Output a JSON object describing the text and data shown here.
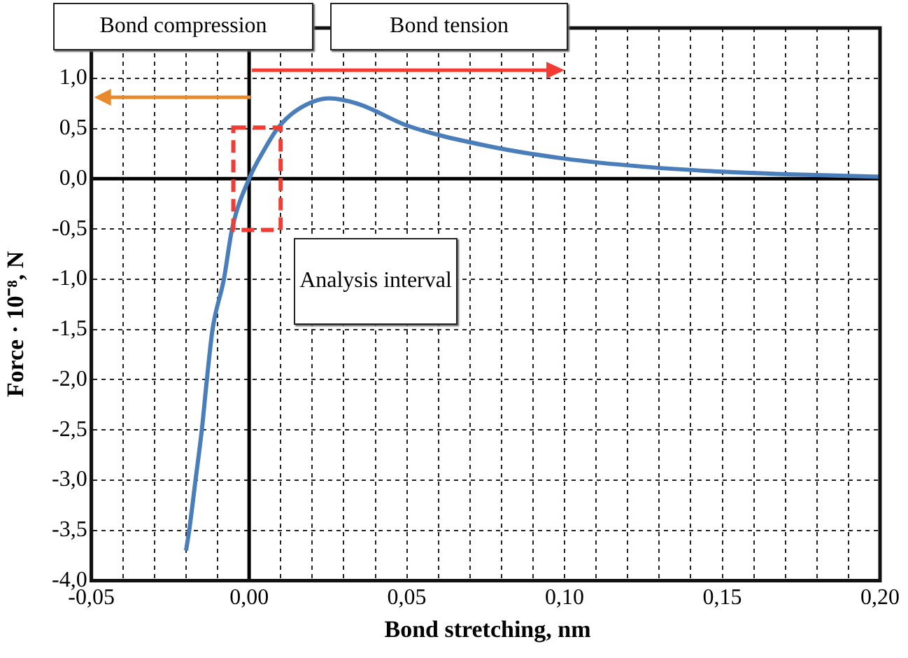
{
  "chart_data": {
    "type": "line",
    "xlabel": "Bond stretching, nm",
    "ylabel": "Force · 10⁻⁸, N",
    "annotations": [
      "Bond compression",
      "Bond tension",
      "Analysis interval"
    ],
    "series": [
      {
        "color": "#4a7ebb",
        "x": [
          -0.02,
          -0.019,
          -0.017,
          -0.015,
          -0.0134,
          -0.0116,
          -0.008,
          -0.0054,
          0,
          0.005,
          0.009,
          0.015,
          0.0255,
          0.035,
          0.05,
          0.075,
          0.1,
          0.125,
          0.15,
          0.175,
          0.2
        ],
        "values": [
          -3.7,
          -3.5,
          -3.0,
          -2.5,
          -2.0,
          -1.5,
          -1.0,
          -0.5,
          0,
          0.3,
          0.5,
          0.68,
          0.8,
          0.74,
          0.53,
          0.33,
          0.2,
          0.12,
          0.07,
          0.04,
          0.02
        ]
      }
    ],
    "xlim": [
      -0.05,
      0.2
    ],
    "xticks": [
      {
        "value": -0.05,
        "label": "-0,05"
      },
      {
        "value": -0.04,
        "label": null
      },
      {
        "value": -0.03,
        "label": null
      },
      {
        "value": -0.02,
        "label": null
      },
      {
        "value": -0.01,
        "label": null
      },
      {
        "value": 0,
        "label": "0,00"
      },
      {
        "value": 0.01,
        "label": null
      },
      {
        "value": 0.02,
        "label": null
      },
      {
        "value": 0.03,
        "label": null
      },
      {
        "value": 0.04,
        "label": null
      },
      {
        "value": 0.05,
        "label": "0,05"
      },
      {
        "value": 0.06,
        "label": null
      },
      {
        "value": 0.07,
        "label": null
      },
      {
        "value": 0.08,
        "label": null
      },
      {
        "value": 0.09,
        "label": null
      },
      {
        "value": 0.1,
        "label": "0,10"
      },
      {
        "value": 0.11,
        "label": null
      },
      {
        "value": 0.12,
        "label": null
      },
      {
        "value": 0.13,
        "label": null
      },
      {
        "value": 0.14,
        "label": null
      },
      {
        "value": 0.15,
        "label": "0,15"
      },
      {
        "value": 0.16,
        "label": null
      },
      {
        "value": 0.17,
        "label": null
      },
      {
        "value": 0.18,
        "label": null
      },
      {
        "value": 0.19,
        "label": null
      },
      {
        "value": 0.2,
        "label": "0,20"
      }
    ],
    "ylim": [
      -4,
      1.5
    ],
    "yticks": [
      {
        "value": -4,
        "label": "-4,0"
      },
      {
        "value": -3.5,
        "label": "-3,5"
      },
      {
        "value": -3,
        "label": "-3,0"
      },
      {
        "value": -2.5,
        "label": "-2,5"
      },
      {
        "value": -2,
        "label": "-2,0"
      },
      {
        "value": -1.5,
        "label": "-1,5"
      },
      {
        "value": -1,
        "label": "-1,0"
      },
      {
        "value": -0.5,
        "label": "-0,5"
      },
      {
        "value": 0,
        "label": "0,0"
      },
      {
        "value": 0.5,
        "label": "0,5"
      },
      {
        "value": 1,
        "label": "1,0"
      }
    ],
    "grid": true,
    "legend": false,
    "marker": "none",
    "line_style": "solid"
  }
}
